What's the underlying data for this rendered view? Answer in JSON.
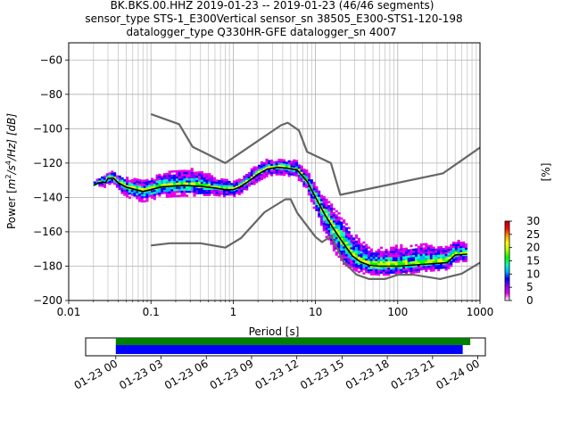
{
  "chart_data": {
    "type": "heatmap",
    "title_lines": [
      "BK.BKS.00.HHZ   2019-01-23 -- 2019-01-23  (46/46 segments)",
      "sensor_type STS-1_E300Vertical sensor_sn 38505_E300-STS1-120-198",
      "datalogger_type Q330HR-GFE datalogger_sn 4007"
    ],
    "xlabel": "Period [s]",
    "ylabel_parts": {
      "pre": "Power [",
      "m": "m",
      "two": "2",
      "mid": "/s",
      "four": "4",
      "post": "/Hz] [dB]"
    },
    "xscale": "log",
    "xlim": [
      0.01,
      1000
    ],
    "ylim": [
      -200,
      -50
    ],
    "x_ticks": [
      {
        "value": 0.01,
        "label": "0.01"
      },
      {
        "value": 0.1,
        "label": "0.1"
      },
      {
        "value": 1,
        "label": "1"
      },
      {
        "value": 10,
        "label": "10"
      },
      {
        "value": 100,
        "label": "100"
      },
      {
        "value": 1000,
        "label": "1000"
      }
    ],
    "y_ticks": [
      {
        "value": -60,
        "label": "−60"
      },
      {
        "value": -80,
        "label": "−80"
      },
      {
        "value": -100,
        "label": "−100"
      },
      {
        "value": -120,
        "label": "−120"
      },
      {
        "value": -140,
        "label": "−140"
      },
      {
        "value": -160,
        "label": "−160"
      },
      {
        "value": -180,
        "label": "−180"
      },
      {
        "value": -200,
        "label": "−200"
      }
    ],
    "grid": true,
    "noise_models": {
      "color": "#666666",
      "high": [
        [
          0.1,
          -91.5
        ],
        [
          0.22,
          -97.4
        ],
        [
          0.32,
          -110.5
        ],
        [
          0.8,
          -120
        ],
        [
          3.8,
          -98
        ],
        [
          4.6,
          -96.5
        ],
        [
          6.3,
          -101
        ],
        [
          7.9,
          -113.5
        ],
        [
          15.4,
          -120
        ],
        [
          20,
          -138.5
        ],
        [
          354.8,
          -126
        ],
        [
          1000,
          -111
        ]
      ],
      "low": [
        [
          0.1,
          -168
        ],
        [
          0.17,
          -166.7
        ],
        [
          0.4,
          -166.7
        ],
        [
          0.8,
          -169.2
        ],
        [
          1.24,
          -163.7
        ],
        [
          2.4,
          -148.6
        ],
        [
          4.3,
          -141.1
        ],
        [
          5,
          -141.1
        ],
        [
          6,
          -149
        ],
        [
          10,
          -163
        ],
        [
          12,
          -166
        ],
        [
          15.6,
          -162.5
        ],
        [
          21.9,
          -177.5
        ],
        [
          31.6,
          -185
        ],
        [
          45,
          -187.5
        ],
        [
          70,
          -187.5
        ],
        [
          101,
          -185
        ],
        [
          154,
          -185
        ],
        [
          328,
          -187.5
        ],
        [
          600,
          -184.4
        ],
        [
          1000,
          -178
        ]
      ]
    },
    "mean_curve": {
      "color": "#000000",
      "points": [
        [
          0.02,
          -133
        ],
        [
          0.023,
          -131.5
        ],
        [
          0.026,
          -131
        ],
        [
          0.028,
          -131.5
        ],
        [
          0.03,
          -129
        ],
        [
          0.035,
          -128.8
        ],
        [
          0.04,
          -131.5
        ],
        [
          0.05,
          -134
        ],
        [
          0.065,
          -135.5
        ],
        [
          0.08,
          -136.5
        ],
        [
          0.1,
          -135.5
        ],
        [
          0.13,
          -134
        ],
        [
          0.17,
          -133.5
        ],
        [
          0.25,
          -133
        ],
        [
          0.4,
          -133.5
        ],
        [
          0.6,
          -134.5
        ],
        [
          0.8,
          -135.5
        ],
        [
          1.0,
          -135.5
        ],
        [
          1.2,
          -134
        ],
        [
          1.5,
          -131
        ],
        [
          2.0,
          -126.5
        ],
        [
          2.6,
          -123.5
        ],
        [
          3.5,
          -122.5
        ],
        [
          4.5,
          -123
        ],
        [
          6,
          -124
        ],
        [
          8,
          -131
        ],
        [
          10,
          -140
        ],
        [
          13,
          -150
        ],
        [
          17,
          -159
        ],
        [
          22,
          -167
        ],
        [
          28,
          -174
        ],
        [
          35,
          -177.5
        ],
        [
          45,
          -179.5
        ],
        [
          60,
          -180
        ],
        [
          100,
          -180
        ],
        [
          200,
          -179
        ],
        [
          400,
          -178
        ],
        [
          500,
          -173.5
        ],
        [
          700,
          -173
        ]
      ]
    },
    "ppsd_spread": [
      [
        0.02,
        0,
        0
      ],
      [
        0.03,
        2,
        2
      ],
      [
        0.06,
        4,
        5
      ],
      [
        0.1,
        5,
        5
      ],
      [
        0.3,
        8,
        5
      ],
      [
        0.6,
        5,
        3
      ],
      [
        1.0,
        3,
        3
      ],
      [
        2,
        4,
        3
      ],
      [
        4,
        3,
        3
      ],
      [
        8,
        4,
        4
      ],
      [
        12,
        8,
        10
      ],
      [
        20,
        12,
        12
      ],
      [
        30,
        12,
        6
      ],
      [
        50,
        8,
        4
      ],
      [
        100,
        10,
        4
      ],
      [
        200,
        10,
        3
      ],
      [
        700,
        6,
        3
      ]
    ],
    "colorbar": {
      "colors": [
        "#ffffff",
        "#e600e6",
        "#8c00ff",
        "#0000ff",
        "#00b4ff",
        "#00ffb4",
        "#00ff00",
        "#b4ff00",
        "#ffff00",
        "#ff9600",
        "#ff0000",
        "#b40000"
      ],
      "label": "[%]",
      "range": [
        0,
        30
      ],
      "ticks": [
        {
          "value": 0,
          "label": "0"
        },
        {
          "value": 5,
          "label": "5"
        },
        {
          "value": 10,
          "label": "10"
        },
        {
          "value": 15,
          "label": "15"
        },
        {
          "value": 20,
          "label": "20"
        },
        {
          "value": 25,
          "label": "25"
        },
        {
          "value": 30,
          "label": "30"
        }
      ]
    },
    "timeline": {
      "start": "2019-01-23 00:00",
      "end": "2019-01-24 00:00",
      "xlim_hours": [
        -2.0,
        24.5
      ],
      "data_span_hours": [
        0,
        23.5
      ],
      "segment_span_hours": [
        0,
        23.0
      ],
      "data_color": "#008000",
      "segment_color": "#0000ff",
      "ticks": [
        {
          "hours": 0,
          "label": "01-23 00"
        },
        {
          "hours": 3,
          "label": "01-23 03"
        },
        {
          "hours": 6,
          "label": "01-23 06"
        },
        {
          "hours": 9,
          "label": "01-23 09"
        },
        {
          "hours": 12,
          "label": "01-23 12"
        },
        {
          "hours": 15,
          "label": "01-23 15"
        },
        {
          "hours": 18,
          "label": "01-23 18"
        },
        {
          "hours": 21,
          "label": "01-23 21"
        },
        {
          "hours": 24,
          "label": "01-24 00"
        }
      ]
    }
  }
}
